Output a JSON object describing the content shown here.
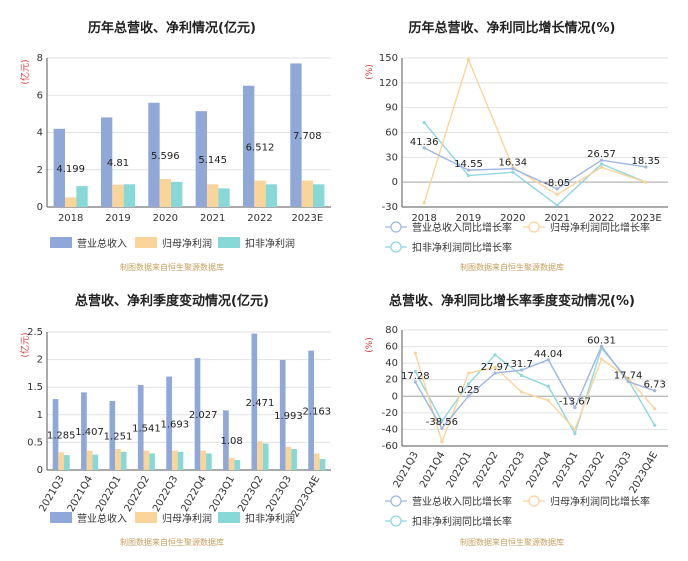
{
  "colors": {
    "revenue_bar": "#8fa8d8",
    "profit_bar": "#fbd49a",
    "deducted_bar": "#88d8d8",
    "revenue_line": "#9fb6e0",
    "profit_line": "#fbd49a",
    "deducted_line": "#8ed8e0",
    "source_text": "#c8a060"
  },
  "chart_data": [
    {
      "id": "annual_amount",
      "type": "bar",
      "title": "历年总营收、净利情况(亿元)",
      "unit": "(亿元)",
      "categories": [
        "2018",
        "2019",
        "2020",
        "2021",
        "2022",
        "2023E"
      ],
      "ylim": [
        0,
        8
      ],
      "yticks": [
        0,
        2,
        4,
        6,
        8
      ],
      "grid": true,
      "legend": "bottom",
      "series": [
        {
          "name": "营业总收入",
          "values": [
            4.199,
            4.81,
            5.596,
            5.145,
            6.512,
            7.708
          ],
          "labels": [
            "4.199",
            "4.81",
            "5.596",
            "5.145",
            "6.512",
            "7.708"
          ]
        },
        {
          "name": "归母净利润",
          "values": [
            0.52,
            1.2,
            1.5,
            1.22,
            1.42,
            1.42
          ]
        },
        {
          "name": "扣非净利润",
          "values": [
            1.12,
            1.22,
            1.35,
            1.0,
            1.22,
            1.22
          ]
        }
      ],
      "source": "制图数据来自恒生聚源数据库"
    },
    {
      "id": "annual_growth",
      "type": "line",
      "title": "历年总营收、净利同比增长情况(%)",
      "unit": "(%)",
      "categories": [
        "2018",
        "2019",
        "2020",
        "2021",
        "2022",
        "2023E"
      ],
      "ylim": [
        -30,
        150
      ],
      "yticks": [
        -30,
        0,
        30,
        60,
        90,
        120,
        150
      ],
      "grid": true,
      "legend": "bottom",
      "series": [
        {
          "name": "营业总收入同比增长率",
          "values": [
            41.36,
            14.55,
            16.34,
            -8.05,
            26.57,
            18.35
          ],
          "labels": [
            "41.36",
            "14.55",
            "16.34",
            "-8.05",
            "26.57",
            "18.35"
          ]
        },
        {
          "name": "归母净利润同比增长率",
          "values": [
            -25,
            148,
            18,
            -15,
            18,
            0
          ]
        },
        {
          "name": "扣非净利润同比增长率",
          "values": [
            72,
            8,
            12,
            -28,
            22,
            0
          ]
        }
      ],
      "source": "制图数据来自恒生聚源数据库"
    },
    {
      "id": "quarter_amount",
      "type": "bar",
      "title": "总营收、净利季度变动情况(亿元)",
      "unit": "(亿元)",
      "categories": [
        "2021Q3",
        "2021Q4",
        "2022Q1",
        "2022Q2",
        "2022Q3",
        "2022Q4",
        "2023Q1",
        "2023Q2",
        "2023Q3",
        "2023Q4E"
      ],
      "ylim": [
        0,
        2.5
      ],
      "yticks": [
        0,
        0.5,
        1,
        1.5,
        2,
        2.5
      ],
      "grid": true,
      "legend": "bottom",
      "series": [
        {
          "name": "营业总收入",
          "values": [
            1.285,
            1.407,
            1.251,
            1.541,
            1.693,
            2.027,
            1.08,
            2.471,
            1.993,
            2.163
          ],
          "labels": [
            "1.285",
            "1.407",
            "1.251",
            "1.541",
            "1.693",
            "2.027",
            "1.08",
            "2.471",
            "1.993",
            "2.163"
          ]
        },
        {
          "name": "归母净利润",
          "values": [
            0.32,
            0.35,
            0.38,
            0.35,
            0.35,
            0.35,
            0.22,
            0.52,
            0.42,
            0.3
          ]
        },
        {
          "name": "扣非净利润",
          "values": [
            0.27,
            0.28,
            0.33,
            0.3,
            0.33,
            0.3,
            0.18,
            0.48,
            0.38,
            0.2
          ]
        }
      ],
      "source": "制图数据来自恒生聚源数据库"
    },
    {
      "id": "quarter_growth",
      "type": "line",
      "title": "总营收、净利同比增长率季度变动情况(%)",
      "unit": "(%)",
      "categories": [
        "2021Q3",
        "2021Q4",
        "2022Q1",
        "2022Q2",
        "2022Q3",
        "2022Q4",
        "2023Q1",
        "2023Q2",
        "2023Q3",
        "2023Q4E"
      ],
      "ylim": [
        -60,
        80
      ],
      "yticks": [
        -60,
        -40,
        -20,
        0,
        20,
        40,
        60,
        80
      ],
      "grid": true,
      "legend": "bottom",
      "series": [
        {
          "name": "营业总收入同比增长率",
          "values": [
            17.28,
            -38.56,
            0.25,
            27.97,
            31.7,
            44.04,
            -13.67,
            60.31,
            17.74,
            6.73
          ],
          "labels": [
            "17.28",
            "-38.56",
            "0.25",
            "27.97",
            "31.7",
            "44.04",
            "-13.67",
            "60.31",
            "17.74",
            "6.73"
          ]
        },
        {
          "name": "归母净利润同比增长率",
          "values": [
            52,
            -55,
            28,
            35,
            5,
            -5,
            -40,
            45,
            22,
            -15
          ]
        },
        {
          "name": "扣非净利润同比增长率",
          "values": [
            30,
            -30,
            15,
            50,
            25,
            12,
            -45,
            58,
            20,
            -35
          ]
        }
      ],
      "source": "制图数据来自恒生聚源数据库"
    }
  ]
}
